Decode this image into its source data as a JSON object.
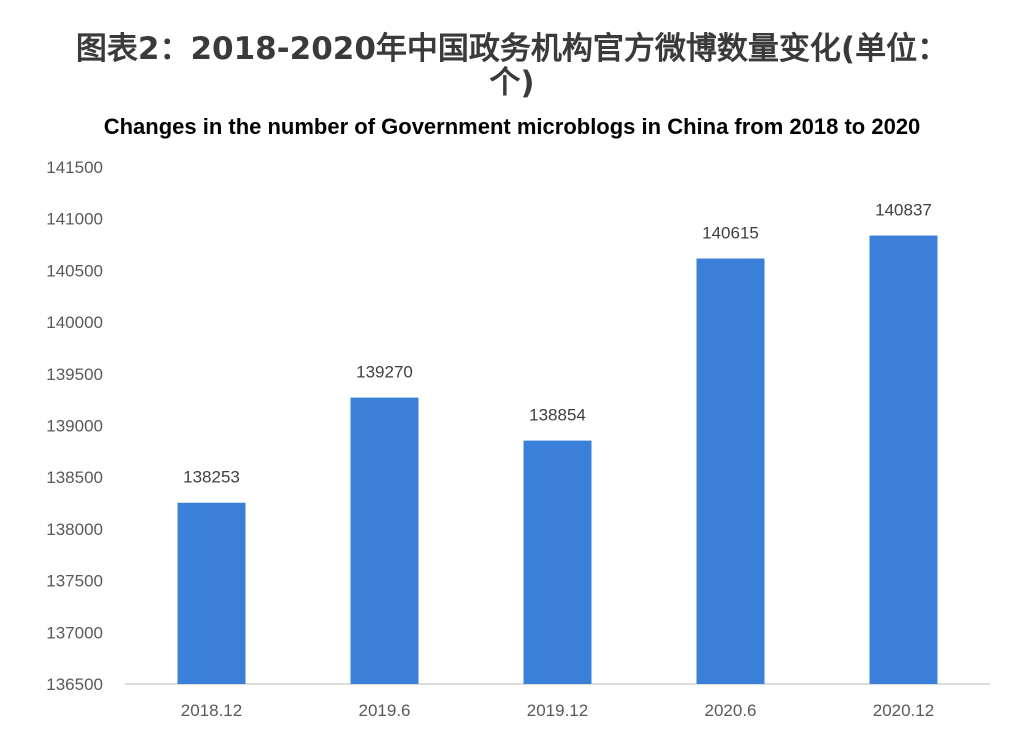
{
  "title_cn": "图表2：2018-2020年中国政务机构官方微博数量变化(单位：个)",
  "title_en": "Changes in the number of Government microblogs in China from 2018 to 2020",
  "chart_data": {
    "type": "bar",
    "categories": [
      "2018.12",
      "2019.6",
      "2019.12",
      "2020.6",
      "2020.12"
    ],
    "values": [
      138253,
      139270,
      138854,
      140615,
      140837
    ],
    "ylim": [
      136500,
      141500
    ],
    "yticks": [
      136500,
      137000,
      137500,
      138000,
      138500,
      139000,
      139500,
      140000,
      140500,
      141000,
      141500
    ],
    "bar_color": "#3a7fd8",
    "grid": false,
    "legend": "none",
    "data_labels": true
  }
}
